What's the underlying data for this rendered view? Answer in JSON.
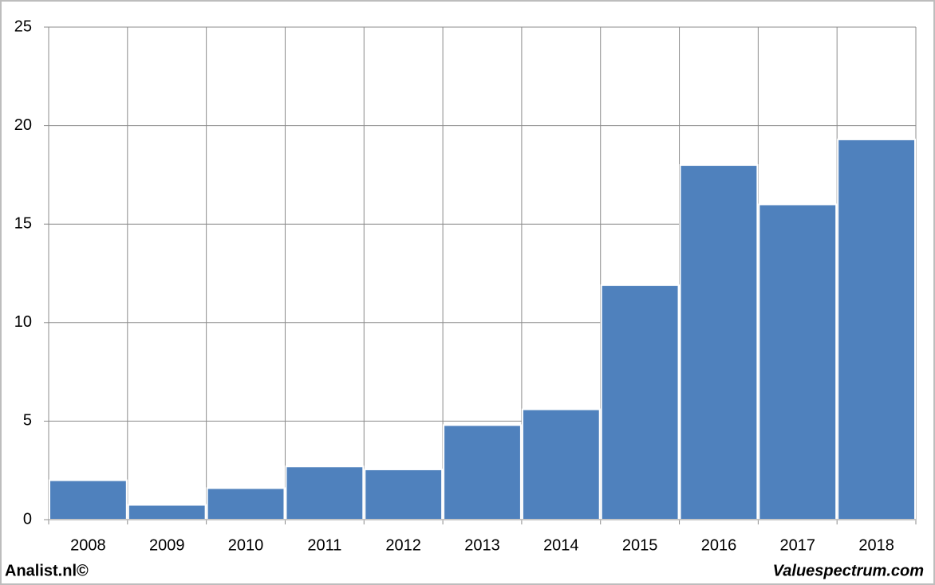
{
  "chart_data": {
    "type": "bar",
    "categories": [
      "2008",
      "2009",
      "2010",
      "2011",
      "2012",
      "2013",
      "2014",
      "2015",
      "2016",
      "2017",
      "2018"
    ],
    "values": [
      2.0,
      0.75,
      1.6,
      2.7,
      2.55,
      4.8,
      5.6,
      11.9,
      18.0,
      16.0,
      19.3
    ],
    "color": "#4f81bd",
    "ylim": [
      0,
      25
    ],
    "yticks": [
      0,
      5,
      10,
      15,
      20,
      25
    ],
    "grid": true,
    "footer_left": "Analist.nl©",
    "footer_right": "Valuespectrum.com"
  }
}
